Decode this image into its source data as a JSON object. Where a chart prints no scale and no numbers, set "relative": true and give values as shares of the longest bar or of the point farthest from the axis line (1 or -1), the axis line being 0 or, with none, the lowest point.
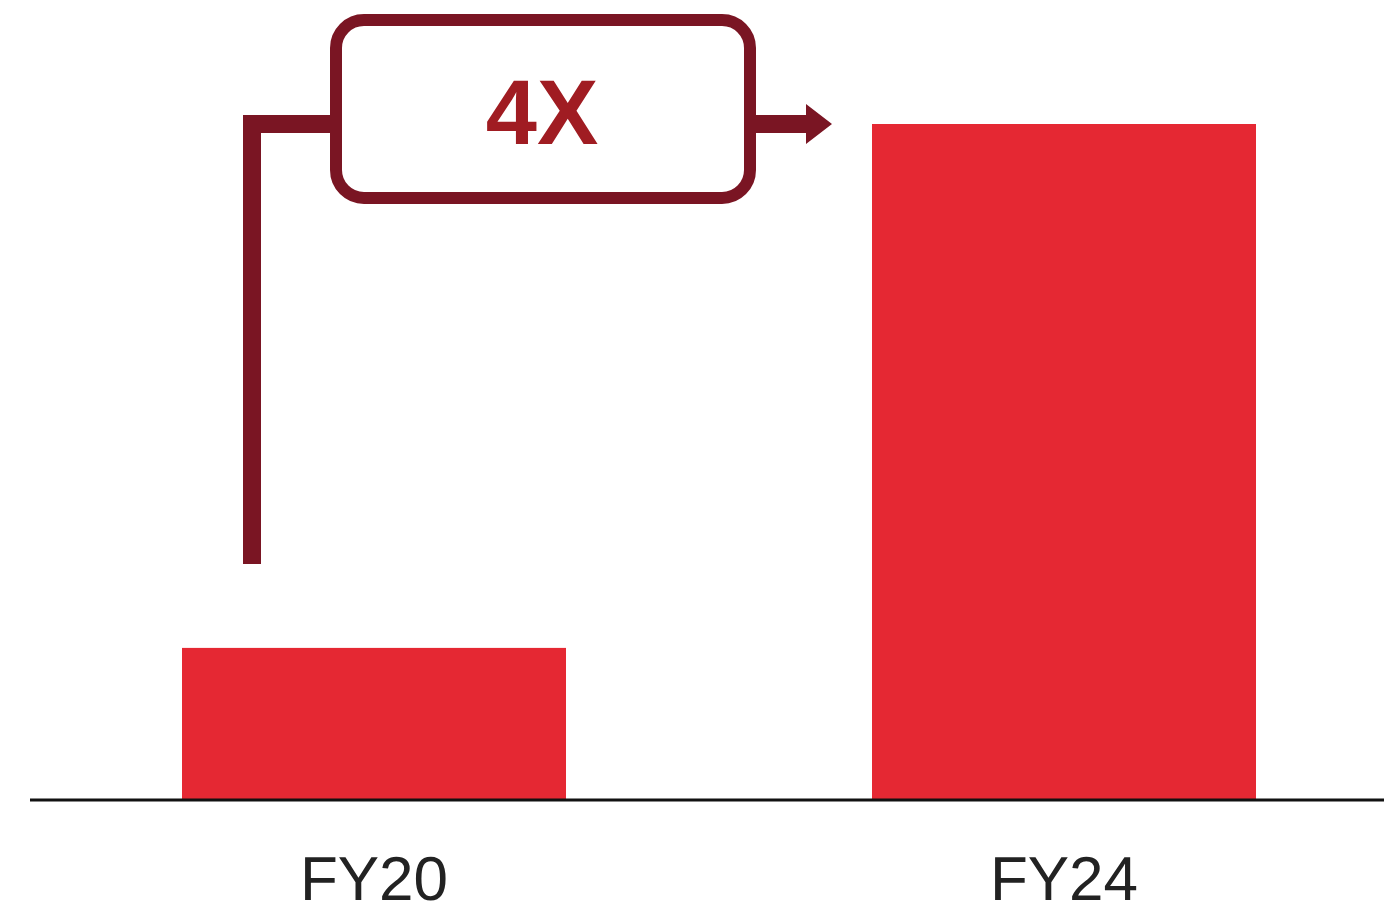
{
  "chart_data": {
    "type": "bar",
    "relative": true,
    "categories": [
      "FY20",
      "FY24"
    ],
    "values": [
      0.225,
      1
    ],
    "color": "#e52833",
    "annotations": [
      "4X"
    ]
  }
}
